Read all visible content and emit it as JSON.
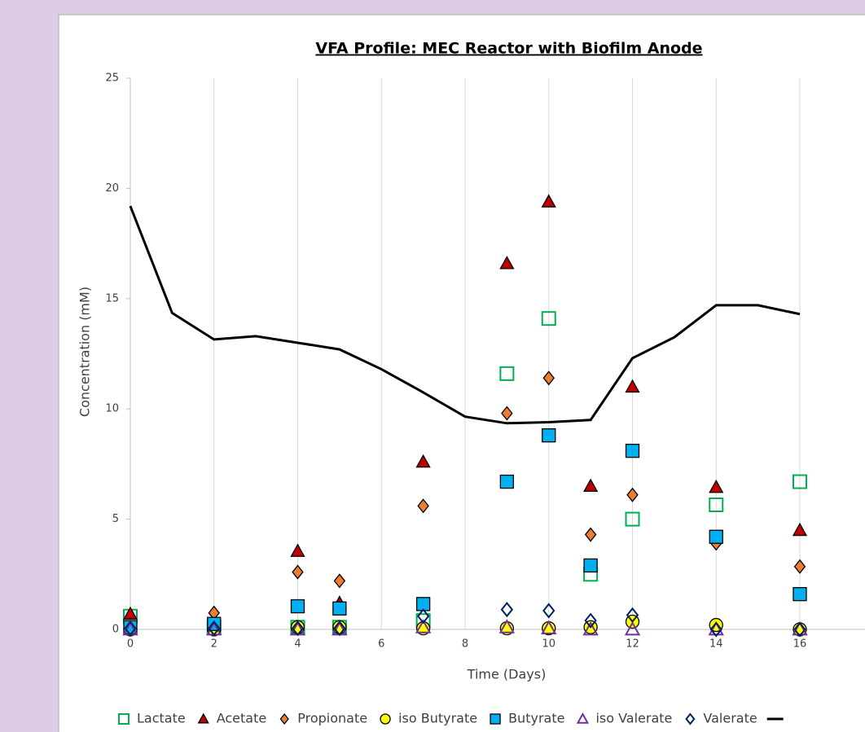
{
  "chart_data": {
    "type": "scatter",
    "title": "VFA Profile: MEC Reactor with Biofilm Anode",
    "x_label": "Time (Days)",
    "y_label": "Concentration (mM)",
    "x": [
      0,
      2,
      4,
      5,
      7,
      9,
      10,
      11,
      12,
      14,
      16
    ],
    "xlim": [
      0,
      18
    ],
    "xticks": [
      0,
      2,
      4,
      6,
      8,
      10,
      12,
      14,
      16
    ],
    "ylim": [
      0,
      25
    ],
    "yticks": [
      0,
      5,
      10,
      15,
      20,
      25
    ],
    "grid": "x",
    "legend": "bottom",
    "series": [
      {
        "name": "Lactate",
        "marker": "square",
        "filled": false,
        "color": "#00b050",
        "values": [
          0.6,
          0.1,
          0.1,
          0.1,
          0.4,
          11.6,
          14.1,
          2.5,
          5.0,
          5.65,
          6.7
        ]
      },
      {
        "name": "Acetate",
        "marker": "triangle",
        "filled": true,
        "color": "#c00000",
        "values": [
          0.7,
          0,
          3.55,
          1.2,
          7.6,
          16.6,
          19.4,
          6.5,
          11.0,
          6.45,
          4.5
        ]
      },
      {
        "name": "Propionate",
        "marker": "diamond",
        "filled": true,
        "color": "#ed7d31",
        "values": [
          0,
          0.75,
          2.6,
          2.2,
          5.6,
          9.8,
          11.4,
          4.3,
          6.1,
          3.9,
          2.85
        ]
      },
      {
        "name": "iso Butyrate",
        "marker": "circle",
        "filled": true,
        "color": "#ffff00",
        "values": [
          0,
          0,
          0.1,
          0.1,
          0.05,
          0.05,
          0.05,
          0.1,
          0.35,
          0.2,
          0
        ]
      },
      {
        "name": "Butyrate",
        "marker": "square",
        "filled": true,
        "color": "#00b0f0",
        "values": [
          0.1,
          0.25,
          1.05,
          0.95,
          1.15,
          6.7,
          8.8,
          2.9,
          8.1,
          4.2,
          1.6
        ]
      },
      {
        "name": "iso Valerate",
        "marker": "triangle",
        "filled": false,
        "color": "#7030a0",
        "values": [
          0,
          0,
          0,
          0,
          0.1,
          0.1,
          0.05,
          0,
          0,
          0,
          0
        ]
      },
      {
        "name": "Valerate",
        "marker": "diamond",
        "filled": false,
        "color": "#002060",
        "values": [
          0.05,
          0.05,
          0.05,
          0.05,
          0.6,
          0.9,
          0.85,
          0.4,
          0.65,
          0,
          0
        ]
      },
      {
        "marker": "line",
        "color": "#000000",
        "x": [
          0,
          1,
          2,
          3,
          4,
          5,
          6,
          7,
          8,
          9,
          10,
          11,
          12,
          13,
          14,
          15,
          16
        ],
        "values": [
          19.2,
          14.35,
          13.15,
          13.3,
          13.0,
          12.7,
          11.8,
          10.75,
          9.65,
          9.35,
          9.4,
          9.5,
          12.3,
          13.25,
          14.7,
          14.7,
          14.3
        ]
      }
    ]
  }
}
